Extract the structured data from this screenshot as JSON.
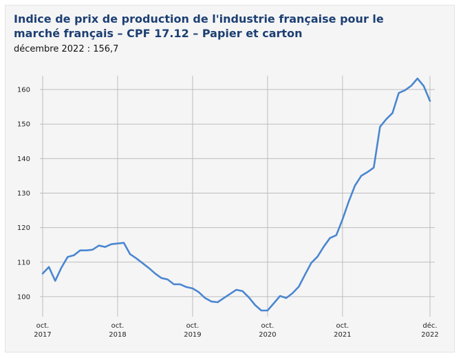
{
  "chart_data": {
    "type": "line",
    "title": "Indice de prix de production de l'industrie française pour le marché français – CPF 17.12 – Papier et carton",
    "subtitle": "décembre 2022 : 156,7",
    "xlabel": "",
    "ylabel": "",
    "ylim": [
      95,
      164
    ],
    "y_ticks": [
      100,
      110,
      120,
      130,
      140,
      150,
      160
    ],
    "x_ticks": [
      {
        "date": "2017-10",
        "label_line1": "oct.",
        "label_line2": "2017"
      },
      {
        "date": "2018-10",
        "label_line1": "oct.",
        "label_line2": "2018"
      },
      {
        "date": "2019-10",
        "label_line1": "oct.",
        "label_line2": "2019"
      },
      {
        "date": "2020-10",
        "label_line1": "oct.",
        "label_line2": "2020"
      },
      {
        "date": "2021-10",
        "label_line1": "oct.",
        "label_line2": "2021"
      },
      {
        "date": "2022-12",
        "label_line1": "déc.",
        "label_line2": "2022"
      }
    ],
    "grid": true,
    "line_color": "#4a86d0",
    "series": [
      {
        "points": [
          [
            "2017-10",
            106.7
          ],
          [
            "2017-11",
            108.6
          ],
          [
            "2017-12",
            104.6
          ],
          [
            "2018-01",
            108.4
          ],
          [
            "2018-02",
            111.5
          ],
          [
            "2018-03",
            112.0
          ],
          [
            "2018-04",
            113.4
          ],
          [
            "2018-05",
            113.4
          ],
          [
            "2018-06",
            113.6
          ],
          [
            "2018-07",
            114.8
          ],
          [
            "2018-08",
            114.4
          ],
          [
            "2018-09",
            115.2
          ],
          [
            "2018-10",
            115.4
          ],
          [
            "2018-11",
            115.6
          ],
          [
            "2018-12",
            112.3
          ],
          [
            "2019-01",
            111.1
          ],
          [
            "2019-02",
            109.7
          ],
          [
            "2019-03",
            108.3
          ],
          [
            "2019-04",
            106.7
          ],
          [
            "2019-05",
            105.4
          ],
          [
            "2019-06",
            105.0
          ],
          [
            "2019-07",
            103.6
          ],
          [
            "2019-08",
            103.6
          ],
          [
            "2019-09",
            102.8
          ],
          [
            "2019-10",
            102.4
          ],
          [
            "2019-11",
            101.3
          ],
          [
            "2019-12",
            99.6
          ],
          [
            "2020-01",
            98.6
          ],
          [
            "2020-02",
            98.4
          ],
          [
            "2020-03",
            99.6
          ],
          [
            "2020-04",
            100.8
          ],
          [
            "2020-05",
            102.0
          ],
          [
            "2020-06",
            101.6
          ],
          [
            "2020-07",
            99.8
          ],
          [
            "2020-08",
            97.6
          ],
          [
            "2020-09",
            96.0
          ],
          [
            "2020-10",
            96.0
          ],
          [
            "2020-11",
            98.1
          ],
          [
            "2020-12",
            100.2
          ],
          [
            "2021-01",
            99.6
          ],
          [
            "2021-02",
            101.0
          ],
          [
            "2021-03",
            102.9
          ],
          [
            "2021-04",
            106.4
          ],
          [
            "2021-05",
            109.8
          ],
          [
            "2021-06",
            111.6
          ],
          [
            "2021-07",
            114.5
          ],
          [
            "2021-08",
            117.0
          ],
          [
            "2021-09",
            117.8
          ],
          [
            "2021-10",
            122.4
          ],
          [
            "2021-11",
            127.6
          ],
          [
            "2021-12",
            132.2
          ],
          [
            "2022-01",
            135.0
          ],
          [
            "2022-02",
            136.1
          ],
          [
            "2022-03",
            137.4
          ],
          [
            "2022-04",
            149.2
          ],
          [
            "2022-05",
            151.4
          ],
          [
            "2022-06",
            153.2
          ],
          [
            "2022-07",
            159.0
          ],
          [
            "2022-08",
            159.8
          ],
          [
            "2022-09",
            161.1
          ],
          [
            "2022-10",
            163.2
          ],
          [
            "2022-11",
            161.0
          ],
          [
            "2022-12",
            156.7
          ]
        ]
      }
    ]
  }
}
